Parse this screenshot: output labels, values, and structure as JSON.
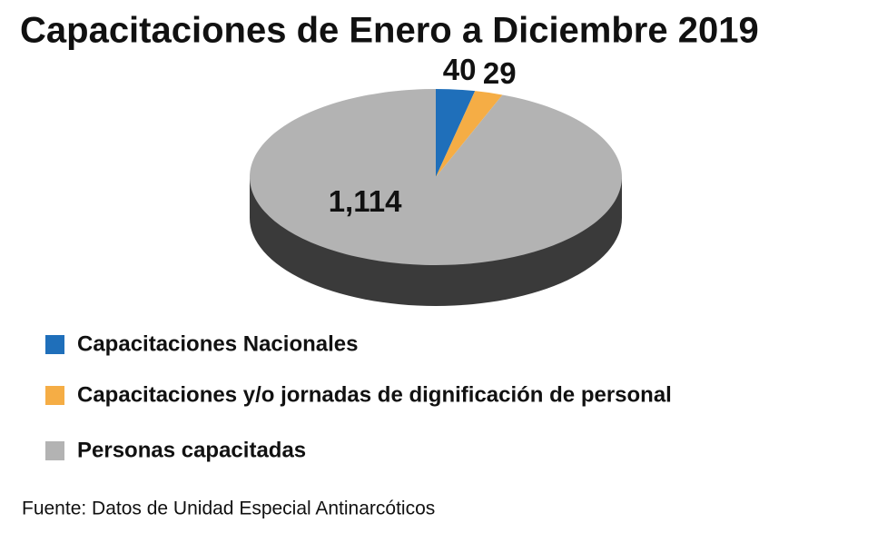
{
  "chart_data": {
    "type": "pie",
    "title": "Capacitaciones de Enero a Diciembre 2019",
    "categories": [
      "Capacitaciones Nacionales",
      "Capacitaciones y/o jornadas de dignificación de personal",
      "Personas capacitadas"
    ],
    "values": [
      40,
      29,
      1114
    ],
    "value_labels": [
      "40",
      "29",
      "1,114"
    ],
    "colors": [
      "#1f6fba",
      "#f5ad45",
      "#b3b3b3"
    ],
    "legend": "bottom-left",
    "source": "Fuente: Datos de Unidad Especial Antinarcóticos"
  }
}
